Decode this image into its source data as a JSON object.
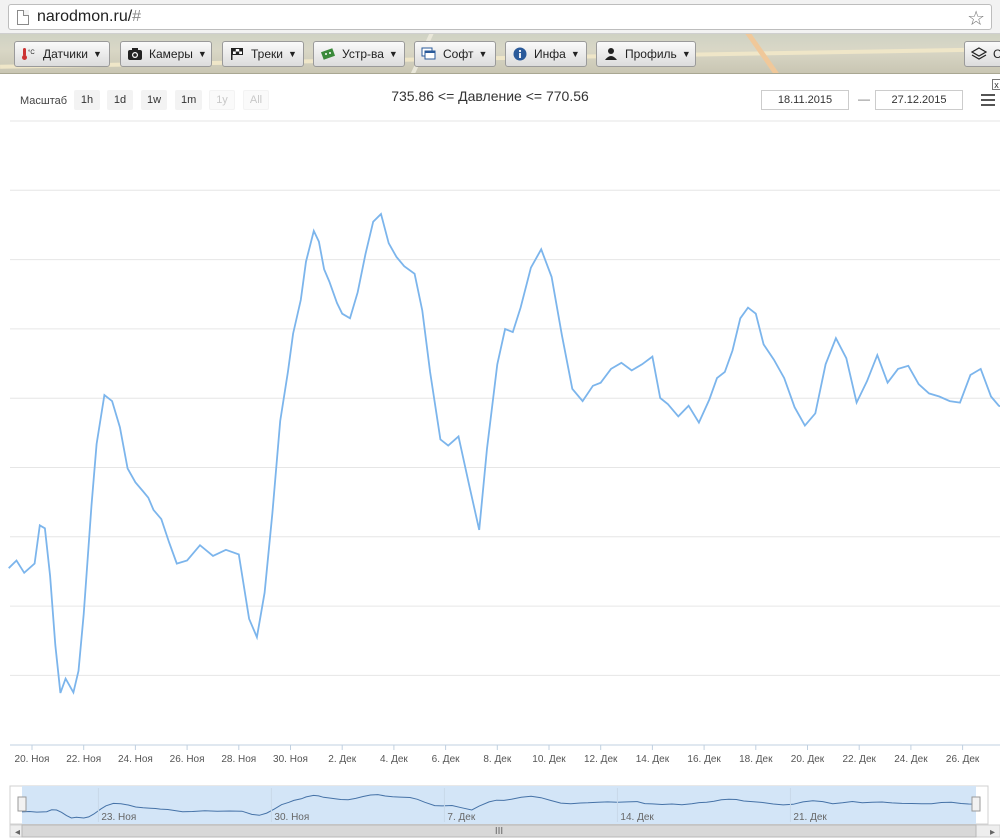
{
  "browser": {
    "url_host": "narodmon.ru/",
    "url_hash": "#"
  },
  "toolbar": {
    "items": [
      {
        "label": "Датчики",
        "icon": "thermometer-icon"
      },
      {
        "label": "Камеры",
        "icon": "camera-icon"
      },
      {
        "label": "Треки",
        "icon": "flag-icon"
      },
      {
        "label": "Устр-ва",
        "icon": "device-icon"
      },
      {
        "label": "Софт",
        "icon": "windows-icon"
      },
      {
        "label": "Инфа",
        "icon": "info-icon"
      },
      {
        "label": "Профиль",
        "icon": "user-icon"
      }
    ],
    "layers_label": "С"
  },
  "chart": {
    "range_label": "Масштаб",
    "zoom_buttons": [
      {
        "label": "1h",
        "enabled": true
      },
      {
        "label": "1d",
        "enabled": true
      },
      {
        "label": "1w",
        "enabled": true
      },
      {
        "label": "1m",
        "enabled": true
      },
      {
        "label": "1y",
        "enabled": false
      },
      {
        "label": "All",
        "enabled": false
      }
    ],
    "title": "735.86 <= Давление <= 770.56",
    "date_from": "18.11.2015",
    "date_sep": "—",
    "date_to": "27.12.2015",
    "close_label": "x",
    "navigator_ticks": [
      "23. Ноя",
      "30. Ноя",
      "7. Дек",
      "14. Дек",
      "21. Дек"
    ],
    "navigator_handle": "III"
  },
  "chart_data": {
    "type": "line",
    "title": "735.86 <= Давление <= 770.56",
    "x_ticks": [
      "20. Ноя",
      "22. Ноя",
      "24. Ноя",
      "26. Ноя",
      "28. Ноя",
      "30. Ноя",
      "2. Дек",
      "4. Дек",
      "6. Дек",
      "8. Дек",
      "10. Дек",
      "12. Дек",
      "14. Дек",
      "16. Дек",
      "18. Дек",
      "20. Дек",
      "22. Дек",
      "24. Дек",
      "26. Дек"
    ],
    "ylim": [
      735.86,
      770.56
    ],
    "grid": true,
    "line_color": "#7cb5ec",
    "series": [
      {
        "values_x_days_from_nov20": [
          -0.9,
          -0.6,
          -0.3,
          0.1,
          0.3,
          0.5,
          0.7,
          0.9,
          1.1,
          1.3,
          1.6,
          1.8,
          2.0,
          2.3,
          2.5,
          2.8,
          3.1,
          3.4,
          3.7,
          4.0,
          4.3,
          4.5,
          4.7,
          5.0,
          5.3,
          5.6,
          6.0,
          6.5,
          7.0,
          7.5,
          8.0,
          8.4,
          8.7,
          9.0,
          9.3,
          9.6,
          9.9,
          10.1,
          10.4,
          10.6,
          10.9,
          11.1,
          11.3,
          11.5,
          11.8,
          12.0,
          12.3,
          12.6,
          12.9,
          13.2,
          13.5,
          13.8,
          14.1,
          14.4,
          14.8,
          15.1,
          15.4,
          15.8,
          16.1,
          16.5,
          16.9,
          17.3,
          17.6,
          18.0,
          18.3,
          18.6,
          18.9,
          19.3,
          19.7,
          20.1,
          20.5,
          20.9,
          21.3,
          21.7,
          22.0,
          22.4,
          22.8,
          23.2,
          23.6,
          24.0,
          24.3,
          24.6,
          25.0,
          25.4,
          25.8,
          26.2,
          26.5,
          26.8,
          27.1,
          27.4,
          27.7,
          28.0,
          28.3,
          28.7,
          29.1,
          29.5,
          29.9,
          30.3,
          30.7,
          31.1,
          31.5,
          31.9,
          32.3,
          32.7,
          33.1,
          33.5,
          33.9,
          34.3,
          34.7,
          35.1,
          35.5,
          35.9,
          36.3,
          36.7,
          37.1,
          37.4,
          37.7
        ],
        "values_y": [
          744.0,
          744.5,
          743.7,
          744.3,
          746.8,
          746.6,
          743.5,
          739.0,
          735.86,
          736.8,
          735.9,
          737.3,
          741.0,
          748.1,
          752.1,
          755.3,
          754.9,
          753.2,
          750.5,
          749.6,
          749.0,
          748.6,
          747.8,
          747.2,
          745.7,
          744.3,
          744.5,
          745.5,
          744.8,
          745.2,
          744.9,
          740.7,
          739.5,
          742.4,
          747.6,
          753.6,
          756.8,
          759.3,
          761.5,
          764.0,
          766.0,
          765.3,
          763.5,
          762.7,
          761.3,
          760.6,
          760.3,
          762.0,
          764.5,
          766.6,
          767.1,
          765.2,
          764.3,
          763.7,
          763.2,
          760.8,
          756.8,
          752.4,
          752.0,
          752.6,
          749.5,
          746.5,
          751.8,
          757.3,
          759.6,
          759.4,
          761.0,
          763.6,
          764.8,
          763.0,
          759.2,
          755.7,
          754.9,
          755.9,
          756.1,
          757.0,
          757.4,
          756.9,
          757.3,
          757.8,
          755.1,
          754.7,
          753.9,
          754.6,
          753.5,
          755.0,
          756.4,
          756.8,
          758.2,
          760.3,
          761.0,
          760.6,
          758.6,
          757.6,
          756.4,
          754.5,
          753.3,
          754.1,
          757.3,
          759.0,
          757.7,
          754.8,
          756.2,
          757.9,
          756.1,
          757.0,
          757.2,
          756.0,
          755.4,
          755.2,
          754.9,
          754.8,
          756.6,
          757.0,
          755.2,
          754.6,
          754.4
        ]
      }
    ]
  }
}
